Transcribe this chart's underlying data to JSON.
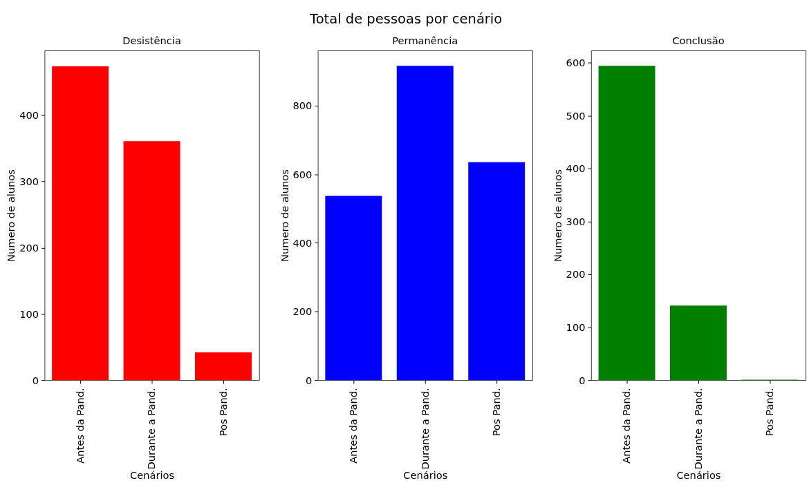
{
  "chart_data": [
    {
      "type": "bar",
      "title": "Desistência",
      "xlabel": "Cenários",
      "ylabel": "Numero de alunos",
      "categories": [
        "Antes da Pand.",
        "Durante a Pand.",
        "Pos Pand."
      ],
      "values": [
        474,
        361,
        42
      ],
      "color": "#ff0000",
      "ylim": [
        0,
        498
      ],
      "yticks": [
        0,
        100,
        200,
        300,
        400
      ],
      "grid": false,
      "annotations": [
        "Total de pessoas por cenário"
      ]
    },
    {
      "type": "bar",
      "title": "Permanência",
      "xlabel": "Cenários",
      "ylabel": "Numero de alunos",
      "categories": [
        "Antes da Pand.",
        "Durante a Pand.",
        "Pos Pand."
      ],
      "values": [
        537,
        916,
        635
      ],
      "color": "#0000ff",
      "ylim": [
        0,
        961
      ],
      "yticks": [
        0,
        200,
        400,
        600,
        800
      ],
      "grid": false
    },
    {
      "type": "bar",
      "title": "Conclusão",
      "xlabel": "Cenários",
      "ylabel": "Numero de alunos",
      "categories": [
        "Antes da Pand.",
        "Durante a Pand.",
        "Pos Pand."
      ],
      "values": [
        594,
        141,
        1
      ],
      "color": "#008000",
      "ylim": [
        0,
        623
      ],
      "yticks": [
        0,
        100,
        200,
        300,
        400,
        500,
        600
      ],
      "grid": false
    }
  ]
}
